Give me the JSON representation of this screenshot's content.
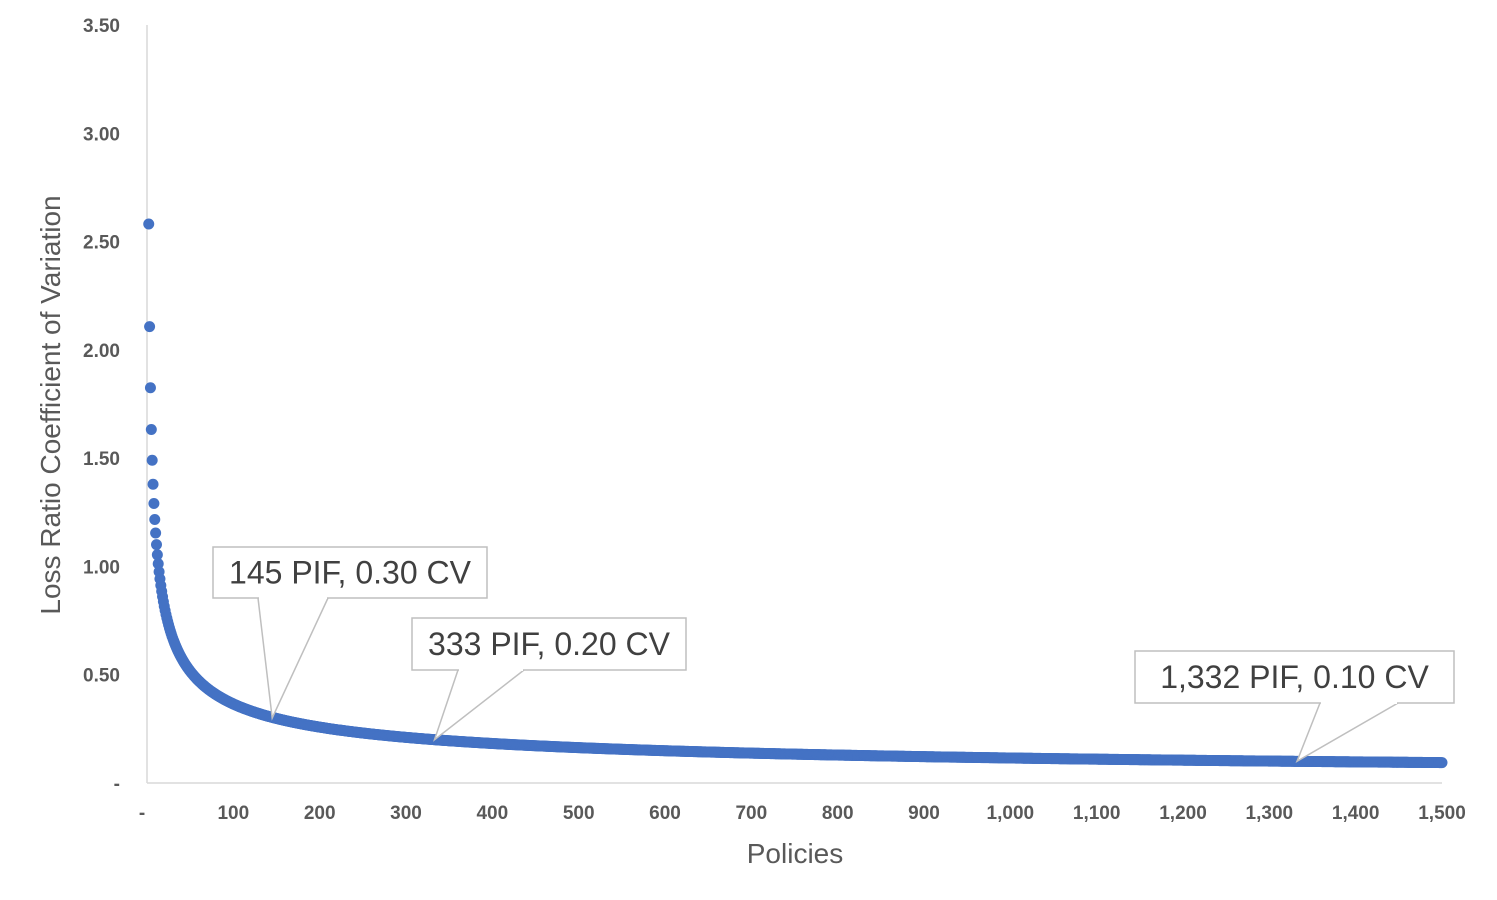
{
  "chart_data": {
    "type": "scatter",
    "title": "",
    "xlabel": "Policies",
    "ylabel": "Loss Ratio Coefficient of Variation",
    "xlim": [
      0,
      1500
    ],
    "ylim": [
      0,
      3.5
    ],
    "x_ticks": [
      {
        "value": 0,
        "label": "-"
      },
      {
        "value": 100,
        "label": "100"
      },
      {
        "value": 200,
        "label": "200"
      },
      {
        "value": 300,
        "label": "300"
      },
      {
        "value": 400,
        "label": "400"
      },
      {
        "value": 500,
        "label": "500"
      },
      {
        "value": 600,
        "label": "600"
      },
      {
        "value": 700,
        "label": "700"
      },
      {
        "value": 800,
        "label": "800"
      },
      {
        "value": 900,
        "label": "900"
      },
      {
        "value": 1000,
        "label": "1,000"
      },
      {
        "value": 1100,
        "label": "1,100"
      },
      {
        "value": 1200,
        "label": "1,200"
      },
      {
        "value": 1300,
        "label": "1,300"
      },
      {
        "value": 1400,
        "label": "1,400"
      },
      {
        "value": 1500,
        "label": "1,500"
      }
    ],
    "y_ticks": [
      {
        "value": 0,
        "label": "-"
      },
      {
        "value": 0.5,
        "label": "0.50"
      },
      {
        "value": 1.0,
        "label": "1.00"
      },
      {
        "value": 1.5,
        "label": "1.50"
      },
      {
        "value": 2.0,
        "label": "2.00"
      },
      {
        "value": 2.5,
        "label": "2.50"
      },
      {
        "value": 3.0,
        "label": "3.00"
      },
      {
        "value": 3.5,
        "label": "3.50"
      }
    ],
    "series_rule": "cv = 3.65 / sqrt(policies)",
    "x_range": [
      1,
      1500
    ],
    "grid": false,
    "legend": "none",
    "marker_color": "#4472C4",
    "annotations": [
      {
        "x": 145,
        "y": 0.3,
        "label": "145 PIF,  0.30 CV"
      },
      {
        "x": 333,
        "y": 0.2,
        "label": "333 PIF,  0.20 CV"
      },
      {
        "x": 1332,
        "y": 0.1,
        "label": "1,332 PIF,  0.10 CV"
      }
    ]
  },
  "colors": {
    "axis": "#D9D9D9",
    "tick_text": "#595959",
    "callout_border": "#BFBFBF",
    "callout_text": "#404040"
  }
}
